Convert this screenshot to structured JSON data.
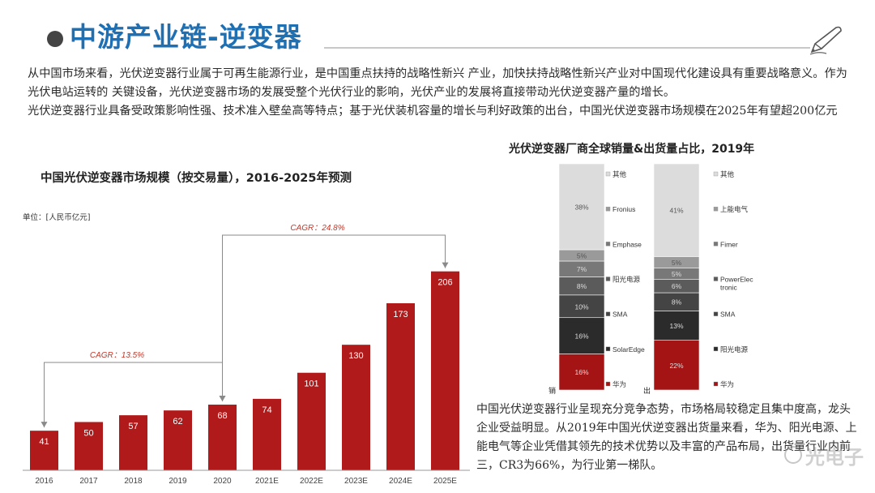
{
  "header": {
    "title": "中游产业链-逆变器"
  },
  "intro": {
    "paragraph1": "从中国市场来看，光伏逆变器行业属于可再生能源行业，是中国重点扶持的战略性新兴 产业，加快扶持战略性新兴产业对中国现代化建设具有重要战略意义。作为光伏电站运转的 关键设备，光伏逆变器市场的发展受整个光伏行业的影响，光伏产业的发展将直接带动光伏逆变器产量的增长。",
    "paragraph2": "光伏逆变器行业具备受政策影响性强、技术准入壁垒高等特点；基于光伏装机容量的增长与利好政策的出台，中国光伏逆变器市场规模在2025年有望超200亿元"
  },
  "summary": "中国光伏逆变器行业呈现充分竞争态势，市场格局较稳定且集中度高，龙头企业受益明显。从2019年中国光伏逆变器出货量来看，华为、阳光电源、上能电气等企业凭借其领先的技术优势以及丰富的产品布局，出货量行业内前三，CR3为66%，为行业第一梯队。",
  "watermark": "光电子",
  "colors": {
    "title_blue": "#1f6fb3",
    "bar_red": "#b11a1a",
    "arrow_gray": "#8a8a8a",
    "cagr_red": "#c0392b"
  },
  "chart_data": [
    {
      "type": "bar",
      "title": "中国光伏逆变器市场规模（按交易量），2016-2025年预测",
      "unit_label": "单位：[人民币亿元]",
      "categories": [
        "2016",
        "2017",
        "2018",
        "2019",
        "2020",
        "2021E",
        "2022E",
        "2023E",
        "2024E",
        "2025E"
      ],
      "values": [
        41,
        50,
        57,
        62,
        68,
        74,
        101,
        130,
        173,
        206
      ],
      "ylim": [
        0,
        220
      ],
      "annotations": [
        {
          "text": "CAGR：13.5%",
          "from": "2016",
          "to": "2020"
        },
        {
          "text": "CAGR：24.8%",
          "from": "2020",
          "to": "2025E"
        }
      ]
    },
    {
      "type": "stacked_bar",
      "title": "光伏逆变器厂商全球销量&出货量占比，2019年",
      "bars": [
        {
          "label": "销量",
          "segments": [
            {
              "name": "华为",
              "value": 16,
              "label": "16%"
            },
            {
              "name": "SolarEdge",
              "value": 16,
              "label": "16%"
            },
            {
              "name": "SMA",
              "value": 10,
              "label": "10%"
            },
            {
              "name": "阳光电源",
              "value": 8,
              "label": "8%"
            },
            {
              "name": "Emphase",
              "value": 7,
              "label": "7%"
            },
            {
              "name": "Fronius",
              "value": 5,
              "label": "5%"
            },
            {
              "name": "其他",
              "value": 38,
              "label": "38%"
            }
          ]
        },
        {
          "label": "出货量",
          "segments": [
            {
              "name": "华为",
              "value": 22,
              "label": "22%"
            },
            {
              "name": "阳光电源",
              "value": 13,
              "label": "13%"
            },
            {
              "name": "SMA",
              "value": 8,
              "label": "8%"
            },
            {
              "name": "PowerElectronic",
              "value": 6,
              "label": "6%"
            },
            {
              "name": "Fimer",
              "value": 5,
              "label": "5%"
            },
            {
              "name": "上能电气",
              "value": 5,
              "label": "5%"
            },
            {
              "name": "其他",
              "value": 41,
              "label": "41%"
            }
          ]
        }
      ],
      "legend_left": [
        "其他",
        "Fronius",
        "Emphase",
        "阳光电源",
        "SMA",
        "SolarEdge",
        "华为"
      ],
      "legend_right": [
        "其他",
        "上能电气",
        "Fimer",
        "PowerElectronic",
        "SMA",
        "阳光电源",
        "华为"
      ],
      "segment_colors": [
        "#a51414",
        "#2b2b2b",
        "#444444",
        "#5b5b5b",
        "#787878",
        "#9a9a9a",
        "#dcdcdc"
      ]
    }
  ]
}
